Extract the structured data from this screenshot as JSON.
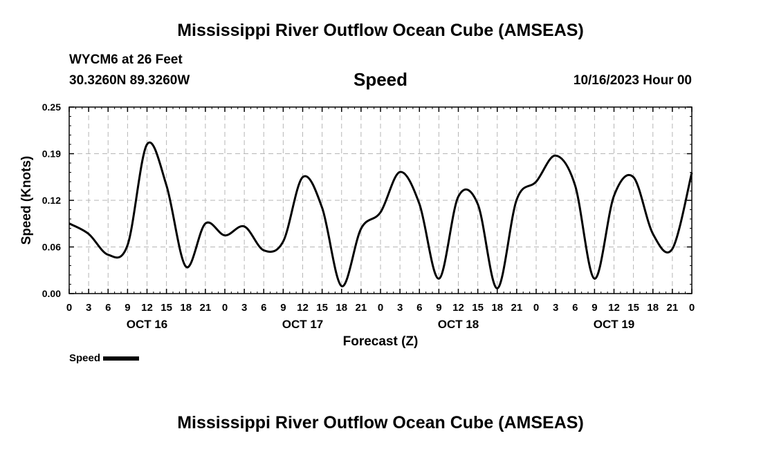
{
  "header": {
    "title": "Mississippi River Outflow Ocean Cube (AMSEAS)",
    "station": "WYCM6 at 26 Feet",
    "coords": "30.3260N  89.3260W",
    "subtitle": "Speed",
    "datetime": "10/16/2023 Hour 00"
  },
  "footer": {
    "title": "Mississippi River Outflow Ocean Cube (AMSEAS)"
  },
  "chart_data": {
    "type": "line",
    "xlabel": "Forecast (Z)",
    "ylabel": "Speed (Knots)",
    "ylim": [
      0,
      0.25
    ],
    "xlim": [
      0,
      96
    ],
    "grid": true,
    "yticks": [
      "0.00",
      "0.06",
      "0.12",
      "0.19",
      "0.25"
    ],
    "ytick_values": [
      0,
      0.0625,
      0.125,
      0.1875,
      0.25
    ],
    "xticks": [
      "0",
      "3",
      "6",
      "9",
      "12",
      "15",
      "18",
      "21",
      "0",
      "3",
      "6",
      "9",
      "12",
      "15",
      "18",
      "21",
      "0",
      "3",
      "6",
      "9",
      "12",
      "15",
      "18",
      "21",
      "0",
      "3",
      "6",
      "9",
      "12",
      "15",
      "18",
      "21",
      "0"
    ],
    "day_labels": [
      {
        "label": "OCT 16",
        "hour": 12
      },
      {
        "label": "OCT 17",
        "hour": 36
      },
      {
        "label": "OCT 18",
        "hour": 60
      },
      {
        "label": "OCT 19",
        "hour": 84
      }
    ],
    "series": [
      {
        "name": "Speed",
        "color": "#000000",
        "x": [
          0,
          3,
          6,
          9,
          12,
          15,
          18,
          21,
          24,
          27,
          30,
          33,
          36,
          39,
          42,
          45,
          48,
          51,
          54,
          57,
          60,
          63,
          66,
          69,
          72,
          75,
          78,
          81,
          84,
          87,
          90,
          93,
          96
        ],
        "y": [
          0.094,
          0.08,
          0.052,
          0.065,
          0.2,
          0.145,
          0.036,
          0.094,
          0.078,
          0.09,
          0.058,
          0.07,
          0.156,
          0.115,
          0.01,
          0.087,
          0.109,
          0.163,
          0.12,
          0.02,
          0.13,
          0.12,
          0.007,
          0.126,
          0.15,
          0.185,
          0.145,
          0.02,
          0.131,
          0.156,
          0.08,
          0.06,
          0.162
        ]
      }
    ],
    "legend": {
      "label": "Speed",
      "position": "bottom-left"
    }
  }
}
